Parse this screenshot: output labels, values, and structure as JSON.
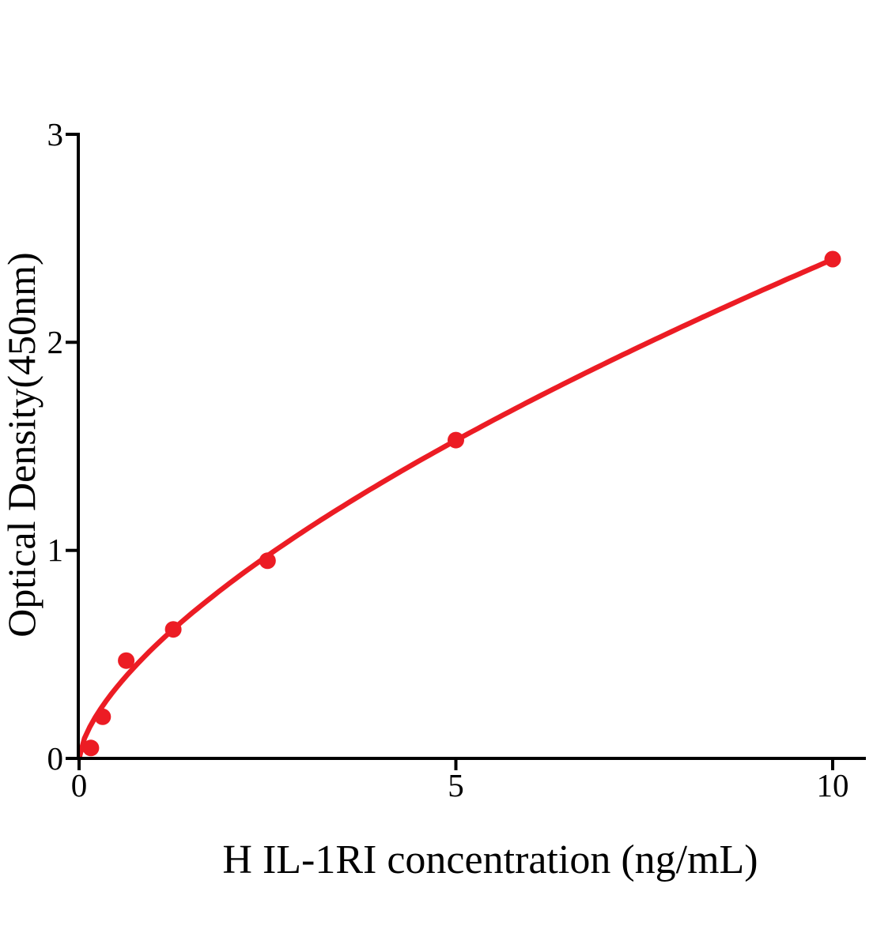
{
  "page": {
    "background_color": "#ffffff",
    "accent_color": "#ec1c24",
    "axis_color": "#000000"
  },
  "chart_data": {
    "type": "scatter",
    "title": "",
    "xlabel": "H IL-1RI concentration (ng/mL)",
    "ylabel": "Optical Density(450nm)",
    "xlim": [
      0,
      10.45
    ],
    "ylim": [
      0,
      3
    ],
    "xticks": [
      0,
      5,
      10
    ],
    "yticks": [
      0,
      1,
      2,
      3
    ],
    "grid": false,
    "legend_position": "none",
    "series": [
      {
        "name": "H IL-1RI",
        "color": "#ec1c24",
        "marker": "circle",
        "marker_radius": 10.5,
        "line_width": 6.5,
        "points": [
          {
            "x": 0.156,
            "y": 0.05
          },
          {
            "x": 0.313,
            "y": 0.2
          },
          {
            "x": 0.625,
            "y": 0.47
          },
          {
            "x": 1.25,
            "y": 0.62
          },
          {
            "x": 2.5,
            "y": 0.95
          },
          {
            "x": 5,
            "y": 1.53
          },
          {
            "x": 10,
            "y": 2.4
          }
        ],
        "fit_curve": {
          "type": "power",
          "a": 0.537,
          "b": 0.65,
          "x_range": [
            0,
            10
          ]
        }
      }
    ]
  }
}
